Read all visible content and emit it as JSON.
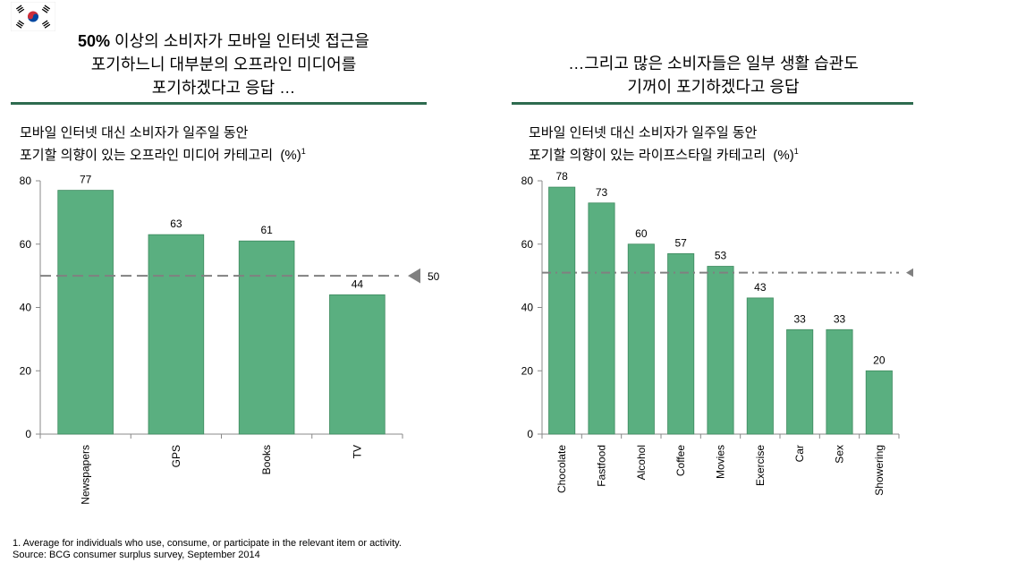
{
  "colors": {
    "bar": "#5aaf80",
    "bar_border": "#3e8a5f",
    "rule": "#2e6b4f",
    "avg_line": "#808080",
    "flag_red": "#cd2e3a",
    "flag_blue": "#0047a0"
  },
  "left_panel": {
    "headline_bold": "50%",
    "headline_line1": " 이상의 소비자가 모바일 인터넷 접근을",
    "headline_line2": "포기하느니 대부분의 오프라인 미디어를",
    "headline_line3": "포기하겠다고 응답 …",
    "subtitle_line1": "모바일 인터넷 대신 소비자가 일주일 동안",
    "subtitle_line2": "포기할 의향이 있는 오프라인 미디어 카테고리",
    "subtitle_unit": "(%)",
    "subtitle_sup": "1"
  },
  "right_panel": {
    "headline_line1": "…그리고 많은 소비자들은 일부 생활 습관도",
    "headline_line2": "기꺼이 포기하겠다고 응답",
    "subtitle_line1": "모바일 인터넷 대신 소비자가 일주일 동안",
    "subtitle_line2": "포기할 의향이 있는 라이프스타일 카테고리",
    "subtitle_unit": "(%)",
    "subtitle_sup": "1"
  },
  "chart_data": [
    {
      "type": "bar",
      "title": "모바일 인터넷 대신 소비자가 일주일 동안 포기할 의향이 있는 오프라인 미디어 카테고리 (%)",
      "categories": [
        "Newspapers",
        "GPS",
        "Books",
        "TV"
      ],
      "values": [
        77,
        63,
        61,
        44
      ],
      "yticks": [
        0,
        20,
        40,
        60,
        80
      ],
      "ylim": [
        0,
        80
      ],
      "reference_line": 50,
      "reference_label": "50"
    },
    {
      "type": "bar",
      "title": "모바일 인터넷 대신 소비자가 일주일 동안 포기할 의향이 있는 라이프스타일 카테고리 (%)",
      "categories": [
        "Chocolate",
        "Fastfood",
        "Alcohol",
        "Coffee",
        "Movies",
        "Exercise",
        "Car",
        "Sex",
        "Showering"
      ],
      "values": [
        78,
        73,
        60,
        57,
        53,
        43,
        33,
        33,
        20
      ],
      "yticks": [
        0,
        20,
        40,
        60,
        80
      ],
      "ylim": [
        0,
        80
      ],
      "reference_line": 51
    }
  ],
  "footnote": {
    "line1": "1. Average for individuals who use, consume, or participate in the relevant item or activity.",
    "line2": "Source: BCG consumer surplus survey, September 2014"
  }
}
